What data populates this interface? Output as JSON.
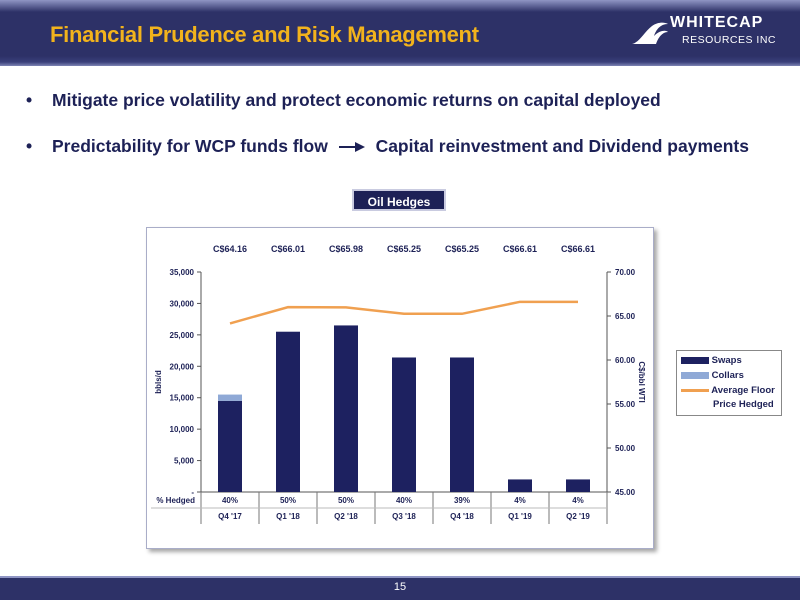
{
  "header": {
    "title": "Financial Prudence and Risk Management",
    "logo_line1": "WHITECAP",
    "logo_line2": "RESOURCES INC"
  },
  "bullets": [
    {
      "text": "Mitigate price volatility and protect economic returns on capital deployed"
    },
    {
      "text_left": "Predictability for WCP funds flow",
      "text_right": "Capital reinvestment and Dividend payments"
    }
  ],
  "badge": "Oil Hedges",
  "chart_data": {
    "type": "bar",
    "categories": [
      "Q4 '17",
      "Q1 '18",
      "Q2 '18",
      "Q3 '18",
      "Q4 '18",
      "Q1 '19",
      "Q2 '19"
    ],
    "series": [
      {
        "name": "Swaps",
        "type": "bar",
        "axis": "left",
        "color": "#1d2160",
        "values": [
          14500,
          25500,
          26500,
          21400,
          21400,
          2000,
          2000
        ]
      },
      {
        "name": "Collars",
        "type": "bar",
        "axis": "left",
        "color": "#8fa9d6",
        "values": [
          1000,
          0,
          0,
          0,
          0,
          0,
          0
        ]
      },
      {
        "name": "Average Floor Price Hedged",
        "type": "line",
        "axis": "right",
        "color": "#f0a050",
        "values": [
          64.16,
          66.01,
          65.98,
          65.25,
          65.25,
          66.61,
          66.61
        ]
      }
    ],
    "price_labels": [
      "C$64.16",
      "C$66.01",
      "C$65.98",
      "C$65.25",
      "C$65.25",
      "C$66.61",
      "C$66.61"
    ],
    "hedged_row_label": "% Hedged",
    "hedged_pct": [
      "40%",
      "50%",
      "50%",
      "40%",
      "39%",
      "4%",
      "4%"
    ],
    "ylabel": "bbls/d",
    "y2label": "C$/bbl WTI",
    "ylim": [
      0,
      35000
    ],
    "y_ticks": [
      "-",
      "5,000",
      "10,000",
      "15,000",
      "20,000",
      "25,000",
      "30,000",
      "35,000"
    ],
    "y2lim": [
      45,
      70
    ],
    "y2_ticks": [
      "45.00",
      "50.00",
      "55.00",
      "60.00",
      "65.00",
      "70.00"
    ],
    "legend": [
      "Swaps",
      "Collars",
      "Average Floor",
      "Price Hedged"
    ],
    "legend_position": "right"
  },
  "footer": {
    "page_number": "15"
  }
}
